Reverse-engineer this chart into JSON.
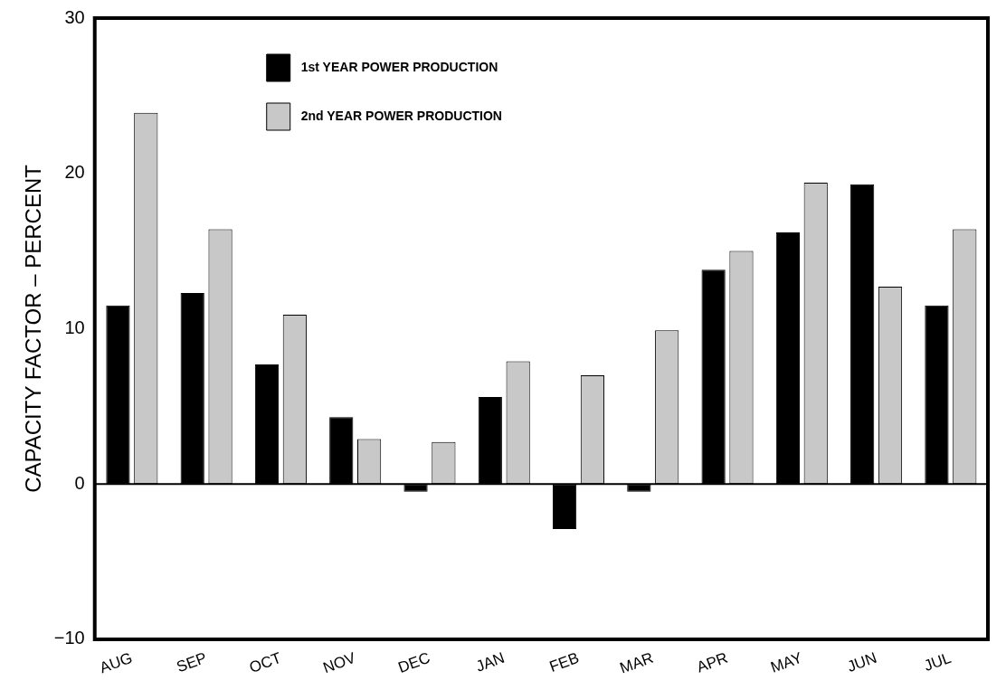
{
  "chart_data": {
    "type": "bar",
    "ylabel": "CAPACITY FACTOR – PERCENT",
    "categories": [
      "AUG",
      "SEP",
      "OCT",
      "NOV",
      "DEC",
      "JAN",
      "FEB",
      "MAR",
      "APR",
      "MAY",
      "JUN",
      "JUL"
    ],
    "series": [
      {
        "name": "1st YEAR POWER PRODUCTION",
        "color": "#000000",
        "values": [
          11.5,
          12.3,
          7.7,
          4.3,
          -0.5,
          5.6,
          -2.9,
          -0.5,
          13.8,
          16.2,
          19.3,
          11.5
        ]
      },
      {
        "name": "2nd YEAR POWER PRODUCTION",
        "color": "#c8c8c8",
        "values": [
          23.9,
          16.4,
          10.9,
          2.9,
          2.7,
          7.9,
          7.0,
          9.9,
          15.0,
          19.4,
          12.7,
          16.4
        ]
      }
    ],
    "ylim": [
      -10,
      30
    ],
    "yticks": [
      -10,
      0,
      10,
      20,
      30
    ],
    "grid": false,
    "legend": "top left",
    "ref_lines": [
      {
        "axis": "y",
        "value": 0,
        "color": "#000000"
      }
    ]
  }
}
